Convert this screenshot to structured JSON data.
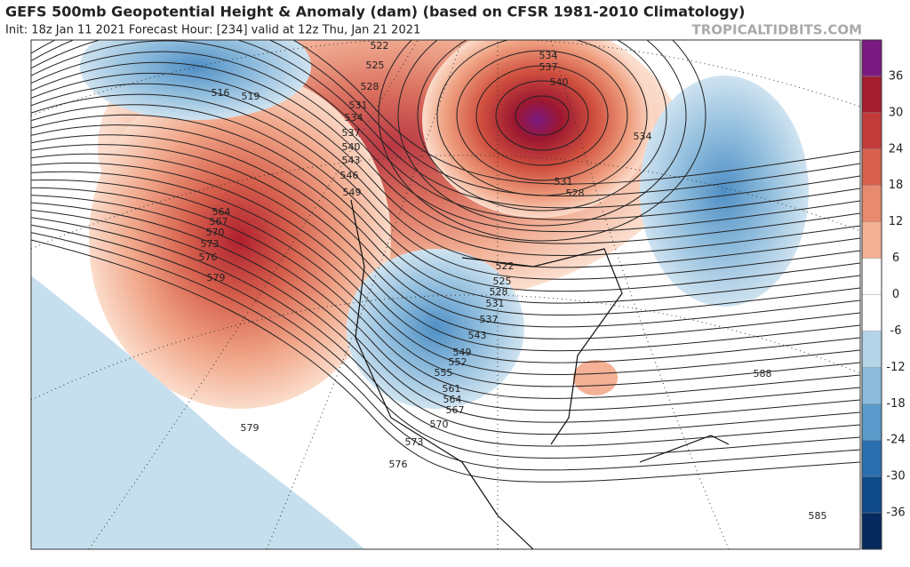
{
  "header": {
    "title": "GEFS 500mb Geopotential Height & Anomaly (dam) (based on CFSR 1981-2010 Climatology)",
    "subtitle": "Init: 18z Jan 11 2021   Forecast Hour: [234]   valid at 12z Thu, Jan 21 2021",
    "site": "TROPICALTIDBITS.COM"
  },
  "colorbar": {
    "ticks": [
      36,
      30,
      24,
      18,
      12,
      6,
      0,
      -6,
      -12,
      -18,
      -24,
      -30,
      -36
    ]
  },
  "contours": [
    516,
    519,
    522,
    525,
    528,
    531,
    534,
    537,
    540,
    543,
    546,
    549,
    564,
    567,
    570,
    573,
    576,
    579,
    579,
    576,
    573,
    570,
    567,
    564,
    561,
    555,
    552,
    549,
    543,
    537,
    531,
    528,
    525,
    522,
    534,
    531,
    528,
    540,
    537,
    534,
    588,
    585
  ]
}
